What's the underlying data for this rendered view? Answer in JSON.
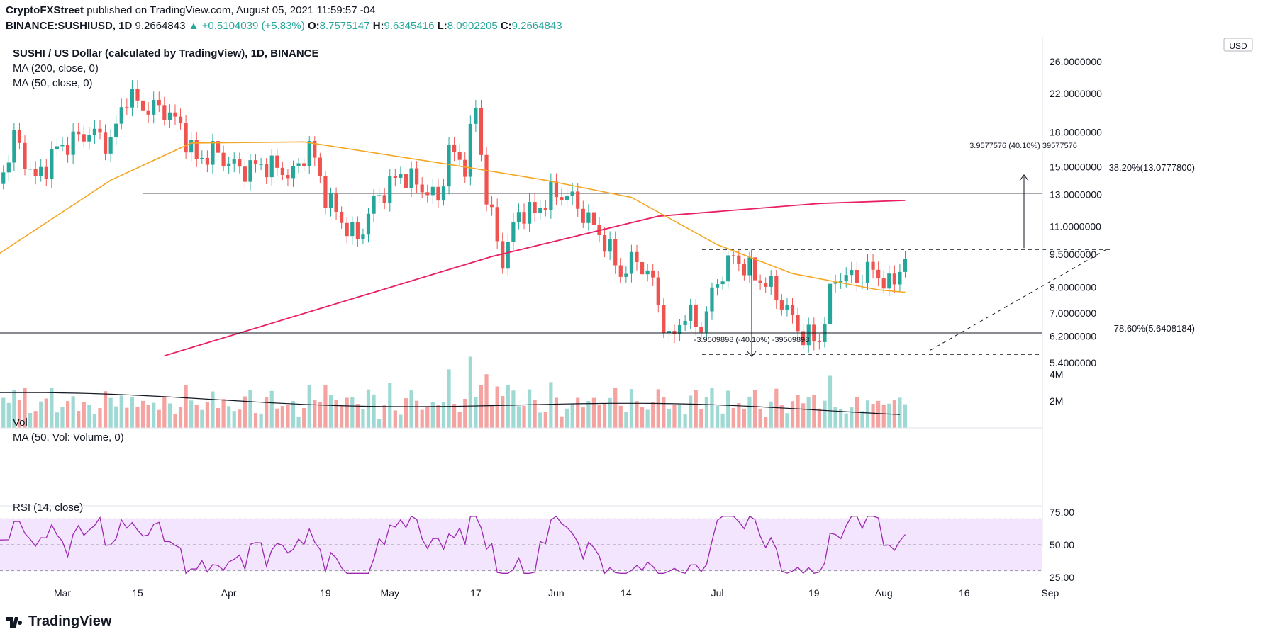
{
  "header": {
    "publisher": "CryptoFXStreet",
    "published_text": "published on TradingView.com, August 05, 2021 11:59:57 -04",
    "symbol": "BINANCE:SUSHIUSD, 1D",
    "last": "9.2664843",
    "change": "+0.5104039 (+5.83%)",
    "o_label": "O:",
    "o": "8.7575147",
    "h_label": "H:",
    "h": "9.6345416",
    "l_label": "L:",
    "l": "8.0902205",
    "c_label": "C:",
    "c": "9.2664843"
  },
  "legend": {
    "main_title": "SUSHI / US Dollar (calculated by TradingView), 1D, BINANCE",
    "ma200": "MA (200, close, 0)",
    "ma50": "MA (50, close, 0)",
    "vol": "Vol",
    "vol_ma": "MA (50, Vol: Volume, 0)",
    "rsi": "RSI (14, close)"
  },
  "currency_badge": "USD",
  "annotations": {
    "fib_382": "38.20%(13.0777800)",
    "fib_786": "78.60%(5.6408184)",
    "measure_up": "3.9577576 (40.10%) 39577576",
    "measure_down": "-3.9509898 (-40.10%) -39509898"
  },
  "logo_text": "TradingView",
  "colors": {
    "up": "#26a69a",
    "down": "#ef5350",
    "ma200": "#e91e63",
    "ma50": "#f5a623",
    "vol_up": "#9fd9d3",
    "vol_down": "#f5a3a1",
    "rsi_line": "#9c27b0",
    "rsi_band": "#f3e5fd"
  },
  "chart_data": [
    {
      "type": "candlestick",
      "title": "SUSHI / US Dollar (calculated by TradingView), 1D, BINANCE",
      "x_ticks": [
        "Mar",
        "15",
        "Apr",
        "19",
        "May",
        "17",
        "Jun",
        "14",
        "Jul",
        "19",
        "Aug",
        "16",
        "Sep"
      ],
      "y_ticks": [
        "26.0000000",
        "22.0000000",
        "18.0000000",
        "15.0000000",
        "13.0000000",
        "11.0000000",
        "9.5000000",
        "8.0000000",
        "7.0000000",
        "6.2000000",
        "5.4000000"
      ],
      "y_scale": "log",
      "ylim": [
        5.4,
        26.0
      ],
      "close_path": [
        [
          "02-17",
          13.5
        ],
        [
          "02-20",
          17.5
        ],
        [
          "02-24",
          14.0
        ],
        [
          "02-28",
          16.5
        ],
        [
          "03-06",
          18.0
        ],
        [
          "03-10",
          17.0
        ],
        [
          "03-13",
          22.0
        ],
        [
          "03-16",
          20.5
        ],
        [
          "03-20",
          20.3
        ],
        [
          "03-23",
          18.5
        ],
        [
          "03-26",
          15.5
        ],
        [
          "03-29",
          16.3
        ],
        [
          "04-03",
          14.8
        ],
        [
          "04-08",
          15.2
        ],
        [
          "04-13",
          14.4
        ],
        [
          "04-16",
          16.8
        ],
        [
          "04-19",
          13.0
        ],
        [
          "04-22",
          11.3
        ],
        [
          "04-25",
          10.3
        ],
        [
          "04-28",
          12.5
        ],
        [
          "05-03",
          14.5
        ],
        [
          "05-07",
          13.5
        ],
        [
          "05-10",
          12.6
        ],
        [
          "05-12",
          16.3
        ],
        [
          "05-15",
          15.2
        ],
        [
          "05-17",
          20.5
        ],
        [
          "05-19",
          12.8
        ],
        [
          "05-22",
          9.2
        ],
        [
          "05-25",
          11.9
        ],
        [
          "05-28",
          11.8
        ],
        [
          "05-31",
          13.0
        ],
        [
          "06-03",
          13.0
        ],
        [
          "06-06",
          11.8
        ],
        [
          "06-10",
          10.2
        ],
        [
          "06-13",
          8.6
        ],
        [
          "06-16",
          9.3
        ],
        [
          "06-19",
          8.2
        ],
        [
          "06-22",
          6.0
        ],
        [
          "06-25",
          7.0
        ],
        [
          "06-28",
          6.5
        ],
        [
          "07-01",
          8.3
        ],
        [
          "07-04",
          9.4
        ],
        [
          "07-08",
          8.5
        ],
        [
          "07-11",
          8.0
        ],
        [
          "07-14",
          7.1
        ],
        [
          "07-17",
          6.2
        ],
        [
          "07-20",
          6.1
        ],
        [
          "07-23",
          8.5
        ],
        [
          "07-27",
          8.4
        ],
        [
          "07-30",
          8.8
        ],
        [
          "08-02",
          8.0
        ],
        [
          "08-05",
          9.27
        ]
      ],
      "ma200": [
        [
          "03-20",
          5.6
        ],
        [
          "05-20",
          9.4
        ],
        [
          "06-20",
          11.6
        ],
        [
          "07-20",
          12.4
        ],
        [
          "08-05",
          12.6
        ]
      ],
      "ma50": [
        [
          "02-17",
          9.5
        ],
        [
          "03-10",
          14.0
        ],
        [
          "03-25",
          17.0
        ],
        [
          "04-15",
          17.1
        ],
        [
          "05-15",
          15.0
        ],
        [
          "05-30",
          14.0
        ],
        [
          "06-15",
          12.8
        ],
        [
          "07-01",
          10.0
        ],
        [
          "07-15",
          8.6
        ],
        [
          "07-31",
          7.9
        ],
        [
          "08-05",
          7.8
        ]
      ],
      "levels": {
        "fib_382": 13.07778,
        "fib_786": 5.6408184,
        "resistance": 9.75
      }
    },
    {
      "type": "bar",
      "title": "Vol",
      "y_ticks": [
        "4M",
        "2M"
      ],
      "ylim": [
        0,
        5.5
      ]
    },
    {
      "type": "line",
      "title": "RSI (14, close)",
      "y_ticks": [
        "75.00",
        "50.00",
        "25.00"
      ],
      "ylim": [
        20,
        80
      ],
      "band": [
        30,
        70
      ]
    }
  ]
}
